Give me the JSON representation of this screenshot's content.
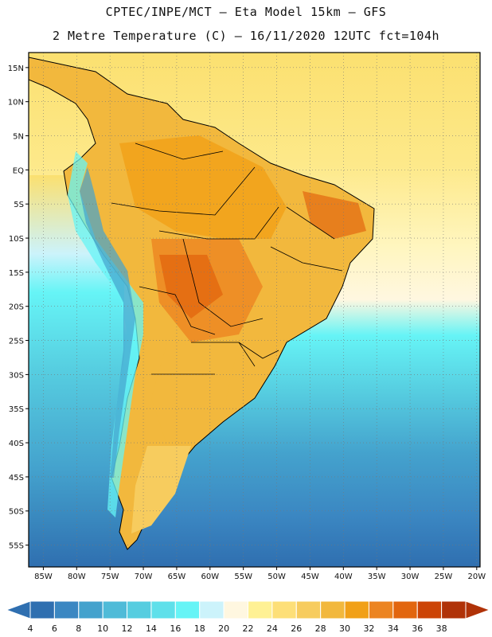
{
  "header": {
    "line1": "CPTEC/INPE/MCT –  Eta Model 15km – GFS",
    "line2": "2 Metre Temperature (C) – 16/11/2020 12UTC fct=104h"
  },
  "axes": {
    "lat_labels": [
      "15N",
      "10N",
      "5N",
      "EQ",
      "5S",
      "10S",
      "15S",
      "20S",
      "25S",
      "30S",
      "35S",
      "40S",
      "45S",
      "50S",
      "55S"
    ],
    "lat_values": [
      15,
      10,
      5,
      0,
      -5,
      -10,
      -15,
      -20,
      -25,
      -30,
      -35,
      -40,
      -45,
      -50,
      -55
    ],
    "lon_labels": [
      "85W",
      "80W",
      "75W",
      "70W",
      "65W",
      "60W",
      "55W",
      "50W",
      "45W",
      "40W",
      "35W",
      "30W",
      "25W",
      "20W"
    ],
    "lon_values": [
      -85,
      -80,
      -75,
      -70,
      -65,
      -60,
      -55,
      -50,
      -45,
      -40,
      -35,
      -30,
      -25,
      -20
    ]
  },
  "colorbar": {
    "labels": [
      "4",
      "6",
      "8",
      "10",
      "12",
      "14",
      "16",
      "18",
      "20",
      "22",
      "24",
      "26",
      "28",
      "30",
      "32",
      "34",
      "36",
      "38"
    ],
    "colors": [
      "#2f6fb0",
      "#3b87c2",
      "#44a2cd",
      "#4fbbd8",
      "#56cde0",
      "#5fe0ea",
      "#66f4f6",
      "#ccf3fb",
      "#fff7e0",
      "#fff194",
      "#fddf78",
      "#f7cc5e",
      "#f2b83d",
      "#f1a017",
      "#ec8421",
      "#e2660f",
      "#cc4406",
      "#b03208"
    ]
  }
}
